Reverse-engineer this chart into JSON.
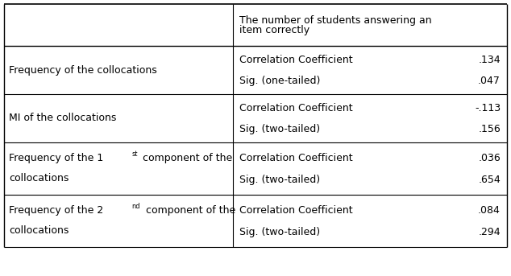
{
  "bg_color": "#ffffff",
  "text_color": "#000000",
  "line_color": "#000000",
  "font_size": 9.0,
  "font_family": "DejaVu Sans",
  "col_split": 0.455,
  "rows": [
    {
      "label_lines": [
        "Frequency of the collocations"
      ],
      "label_sup": null,
      "sub1_label": "Correlation Coefficient",
      "sub1_value": ".134",
      "sub2_label": "Sig. (one-tailed)",
      "sub2_value": ".047"
    },
    {
      "label_lines": [
        "MI of the collocations"
      ],
      "label_sup": null,
      "sub1_label": "Correlation Coefficient",
      "sub1_value": "-.113",
      "sub2_label": "Sig. (two-tailed)",
      "sub2_value": ".156"
    },
    {
      "label_lines": [
        "Frequency of the 1",
        " component of the",
        "collocations"
      ],
      "label_sup": "st",
      "sub1_label": "Correlation Coefficient",
      "sub1_value": ".036",
      "sub2_label": "Sig. (two-tailed)",
      "sub2_value": ".654"
    },
    {
      "label_lines": [
        "Frequency of the 2",
        " component of the",
        "collocations"
      ],
      "label_sup": "nd",
      "sub1_label": "Correlation Coefficient",
      "sub1_value": ".084",
      "sub2_label": "Sig. (two-tailed)",
      "sub2_value": ".294"
    }
  ]
}
